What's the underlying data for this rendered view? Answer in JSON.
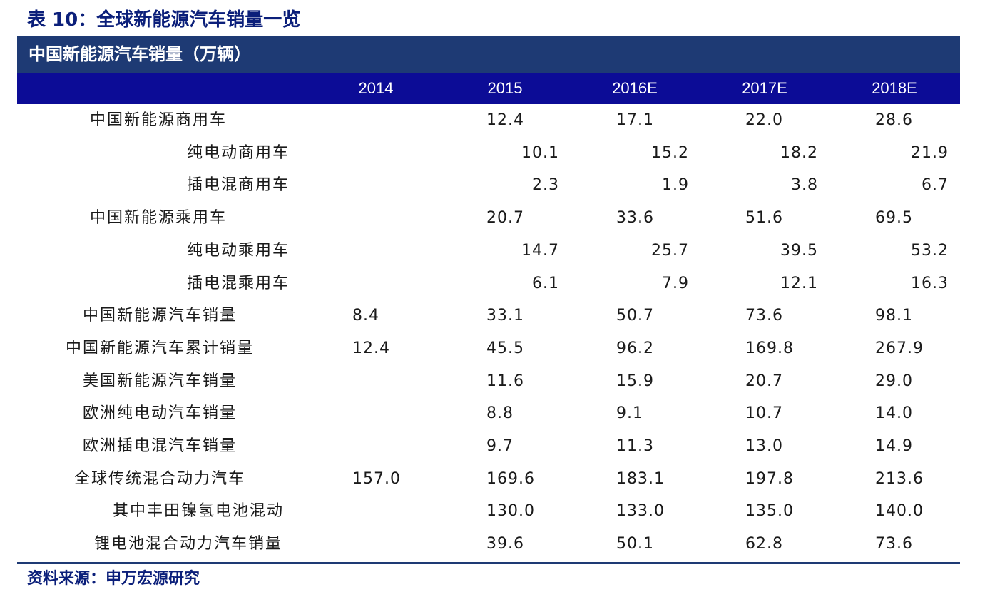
{
  "title": "表 10：全球新能源汽车销量一览",
  "section_header": "中国新能源汽车销量（万辆）",
  "years": [
    "2014",
    "2015",
    "2016E",
    "2017E",
    "2018E"
  ],
  "rows": [
    {
      "label": "中国新能源商用车",
      "level": 1,
      "values": [
        "",
        "12.4",
        "17.1",
        "22.0",
        "28.6"
      ]
    },
    {
      "label": "纯电动商用车",
      "level": 2,
      "values": [
        "",
        "10.1",
        "15.2",
        "18.2",
        "21.9"
      ]
    },
    {
      "label": "插电混商用车",
      "level": 2,
      "values": [
        "",
        "2.3",
        "1.9",
        "3.8",
        "6.7"
      ]
    },
    {
      "label": "中国新能源乘用车",
      "level": 1,
      "values": [
        "",
        "20.7",
        "33.6",
        "51.6",
        "69.5"
      ]
    },
    {
      "label": "纯电动乘用车",
      "level": 2,
      "values": [
        "",
        "14.7",
        "25.7",
        "39.5",
        "53.2"
      ]
    },
    {
      "label": "插电混乘用车",
      "level": 2,
      "values": [
        "",
        "6.1",
        "7.9",
        "12.1",
        "16.3"
      ]
    },
    {
      "label": "中国新能源汽车销量",
      "level": 0,
      "values": [
        "8.4",
        "33.1",
        "50.7",
        "73.6",
        "98.1"
      ]
    },
    {
      "label": "中国新能源汽车累计销量",
      "level": 0,
      "values": [
        "12.4",
        "45.5",
        "96.2",
        "169.8",
        "267.9"
      ]
    },
    {
      "label": "美国新能源汽车销量",
      "level": 0,
      "values": [
        "",
        "11.6",
        "15.9",
        "20.7",
        "29.0"
      ]
    },
    {
      "label": "欧洲纯电动汽车销量",
      "level": 0,
      "values": [
        "",
        "8.8",
        "9.1",
        "10.7",
        "14.0"
      ]
    },
    {
      "label": "欧洲插电混汽车销量",
      "level": 0,
      "values": [
        "",
        "9.7",
        "11.3",
        "13.0",
        "14.9"
      ]
    },
    {
      "label": "全球传统混合动力汽车",
      "level": 0,
      "values": [
        "157.0",
        "169.6",
        "183.1",
        "197.8",
        "213.6"
      ]
    },
    {
      "label": "其中丰田镍氢电池混动",
      "level": 3,
      "values": [
        "",
        "130.0",
        "133.0",
        "135.0",
        "140.0"
      ]
    },
    {
      "label": "锂电池混合动力汽车销量",
      "level": 4,
      "values": [
        "",
        "39.6",
        "50.1",
        "62.8",
        "73.6"
      ]
    }
  ],
  "source": "资料来源：申万宏源研究"
}
